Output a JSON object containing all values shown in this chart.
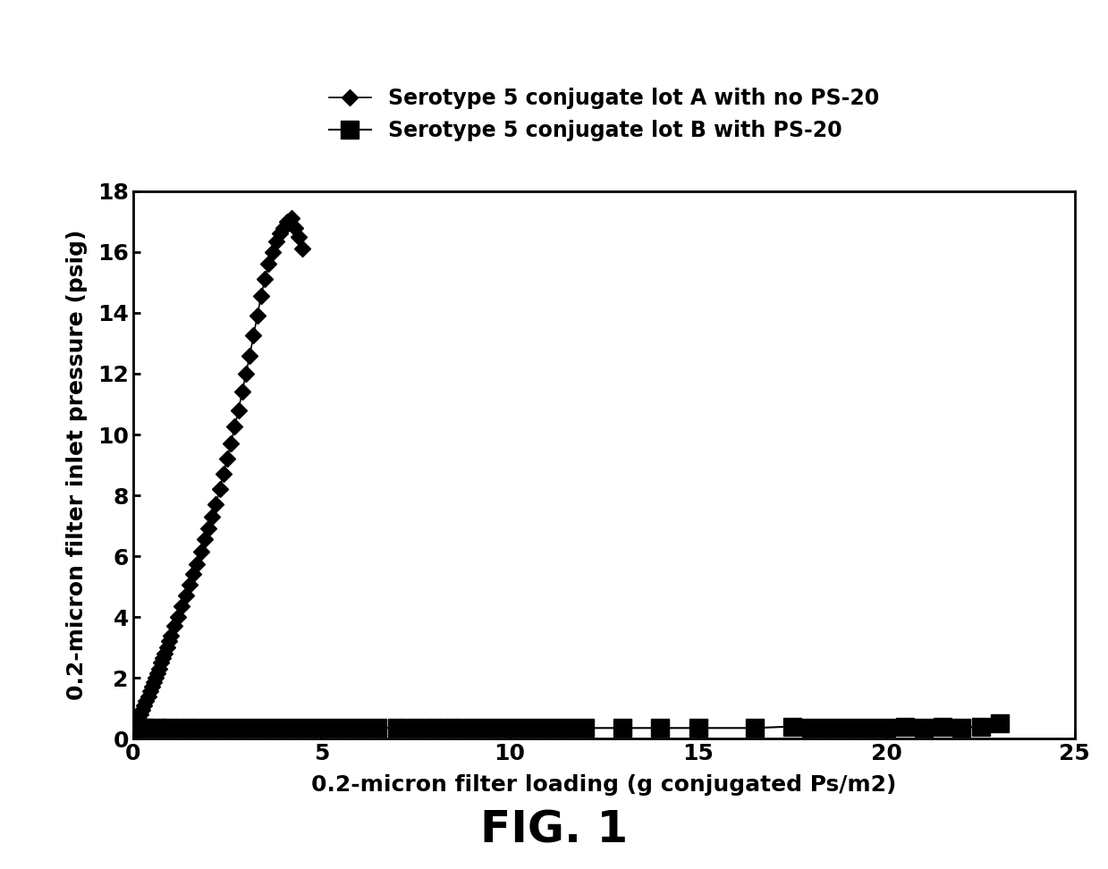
{
  "series_A_label": "Serotype 5 conjugate lot A with no PS-20",
  "series_B_label": "Serotype 5 conjugate lot B with PS-20",
  "series_A_x": [
    0.0,
    0.1,
    0.15,
    0.2,
    0.25,
    0.3,
    0.35,
    0.4,
    0.45,
    0.5,
    0.55,
    0.6,
    0.65,
    0.7,
    0.75,
    0.8,
    0.85,
    0.9,
    0.95,
    1.0,
    1.1,
    1.2,
    1.3,
    1.4,
    1.5,
    1.6,
    1.7,
    1.8,
    1.9,
    2.0,
    2.1,
    2.2,
    2.3,
    2.4,
    2.5,
    2.6,
    2.7,
    2.8,
    2.9,
    3.0,
    3.1,
    3.2,
    3.3,
    3.4,
    3.5,
    3.6,
    3.7,
    3.8,
    3.9,
    4.0,
    4.1,
    4.2,
    4.3,
    4.4,
    4.5
  ],
  "series_A_y": [
    0.3,
    0.5,
    0.65,
    0.8,
    0.95,
    1.1,
    1.25,
    1.4,
    1.55,
    1.7,
    1.85,
    2.0,
    2.15,
    2.3,
    2.5,
    2.65,
    2.8,
    3.0,
    3.2,
    3.4,
    3.7,
    4.0,
    4.35,
    4.7,
    5.05,
    5.4,
    5.75,
    6.15,
    6.55,
    6.9,
    7.3,
    7.7,
    8.2,
    8.7,
    9.2,
    9.7,
    10.25,
    10.8,
    11.4,
    12.0,
    12.6,
    13.25,
    13.9,
    14.55,
    15.1,
    15.6,
    16.0,
    16.35,
    16.6,
    16.8,
    17.0,
    17.1,
    16.8,
    16.5,
    16.1
  ],
  "series_B_x": [
    0.0,
    0.3,
    0.6,
    1.0,
    1.5,
    2.0,
    2.5,
    3.0,
    3.5,
    4.0,
    4.5,
    5.0,
    5.5,
    6.0,
    6.5,
    7.0,
    7.5,
    8.0,
    8.5,
    9.0,
    9.5,
    10.0,
    10.5,
    11.0,
    11.5,
    12.0,
    13.0,
    14.0,
    15.0,
    16.5,
    17.5,
    18.0,
    18.5,
    19.0,
    19.5,
    20.0,
    20.5,
    21.0,
    21.5,
    22.0,
    22.5,
    23.0
  ],
  "series_B_y": [
    0.35,
    0.35,
    0.35,
    0.35,
    0.35,
    0.35,
    0.35,
    0.35,
    0.35,
    0.35,
    0.35,
    0.35,
    0.35,
    0.35,
    0.35,
    0.35,
    0.35,
    0.35,
    0.35,
    0.35,
    0.35,
    0.35,
    0.35,
    0.35,
    0.35,
    0.35,
    0.35,
    0.35,
    0.35,
    0.35,
    0.4,
    0.35,
    0.35,
    0.35,
    0.35,
    0.35,
    0.4,
    0.35,
    0.4,
    0.35,
    0.4,
    0.5
  ],
  "xlabel": "0.2-micron filter loading (g conjugated Ps/m2)",
  "ylabel": "0.2-micron filter inlet pressure (psig)",
  "xlim": [
    0,
    25
  ],
  "ylim": [
    0,
    18
  ],
  "xticks": [
    0,
    5,
    10,
    15,
    20,
    25
  ],
  "yticks": [
    0,
    2,
    4,
    6,
    8,
    10,
    12,
    14,
    16,
    18
  ],
  "fig_label": "FIG. 1",
  "line_color": "#000000",
  "background_color": "#ffffff",
  "marker_A": "D",
  "marker_B": "s",
  "marker_size_A": 9,
  "marker_size_B": 14
}
